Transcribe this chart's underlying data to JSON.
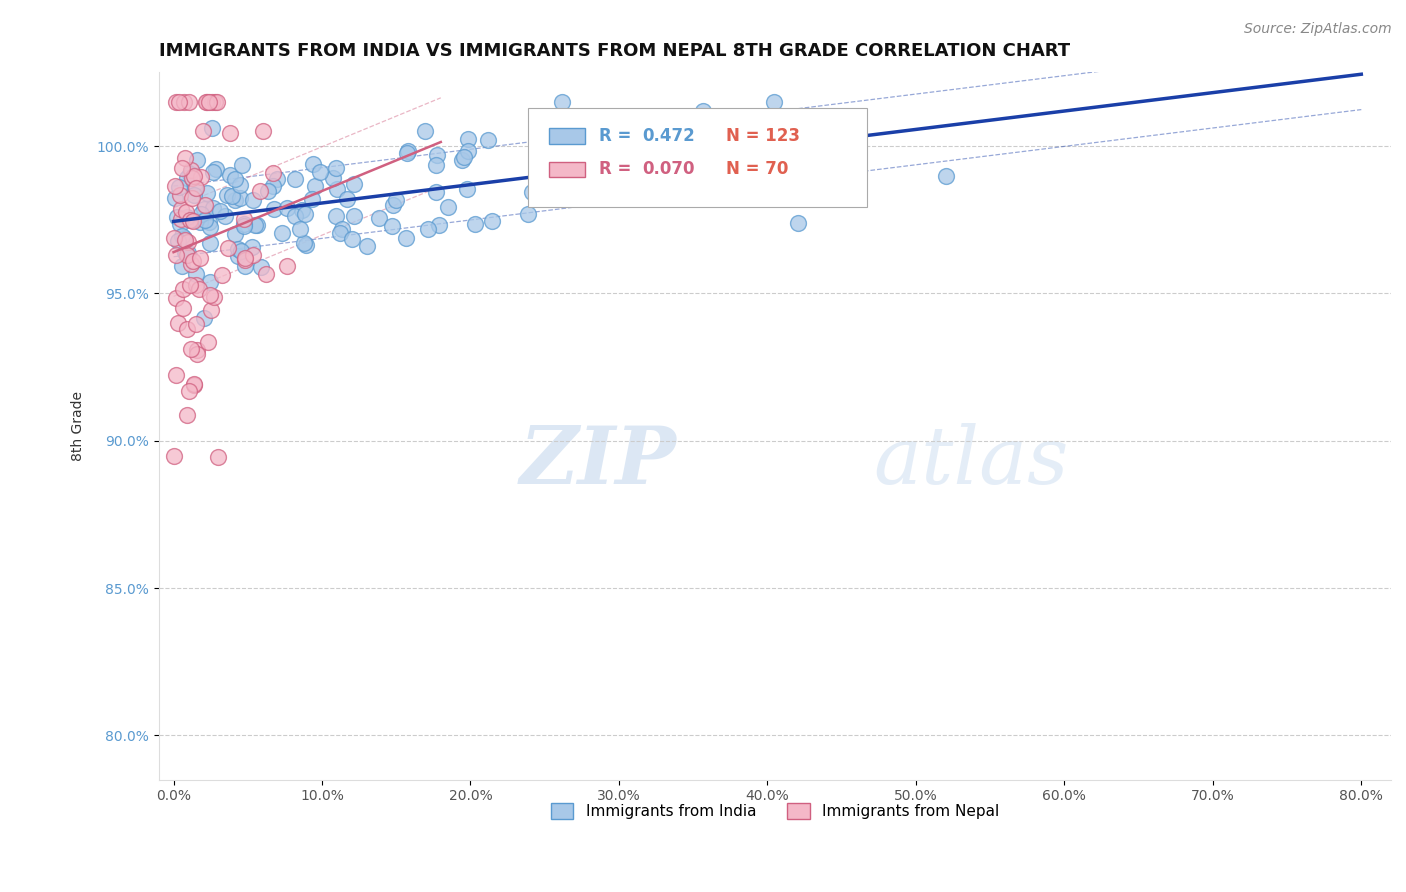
{
  "title": "IMMIGRANTS FROM INDIA VS IMMIGRANTS FROM NEPAL 8TH GRADE CORRELATION CHART",
  "source": "Source: ZipAtlas.com",
  "ylabel": "8th Grade",
  "x_tick_labels": [
    "0.0%",
    "10.0%",
    "20.0%",
    "30.0%",
    "40.0%",
    "50.0%",
    "60.0%",
    "70.0%",
    "80.0%"
  ],
  "x_tick_vals": [
    0,
    10,
    20,
    30,
    40,
    50,
    60,
    70,
    80
  ],
  "y_tick_labels": [
    "80.0%",
    "85.0%",
    "90.0%",
    "95.0%",
    "100.0%"
  ],
  "y_tick_vals": [
    80,
    85,
    90,
    95,
    100
  ],
  "xlim": [
    -1.0,
    82.0
  ],
  "ylim": [
    78.5,
    102.5
  ],
  "india_color": "#a8c8e8",
  "india_edge_color": "#5a9ad0",
  "nepal_color": "#f4b8c8",
  "nepal_edge_color": "#d06080",
  "india_line_color": "#1a3fa8",
  "nepal_line_color": "#d06080",
  "r_india": 0.472,
  "n_india": 123,
  "r_nepal": 0.07,
  "n_nepal": 70,
  "watermark_zip": "ZIP",
  "watermark_atlas": "atlas",
  "legend_india": "Immigrants from India",
  "legend_nepal": "Immigrants from Nepal",
  "title_fontsize": 13,
  "axis_label_fontsize": 10,
  "tick_fontsize": 10,
  "source_fontsize": 10,
  "india_seed": 42,
  "nepal_seed": 7
}
